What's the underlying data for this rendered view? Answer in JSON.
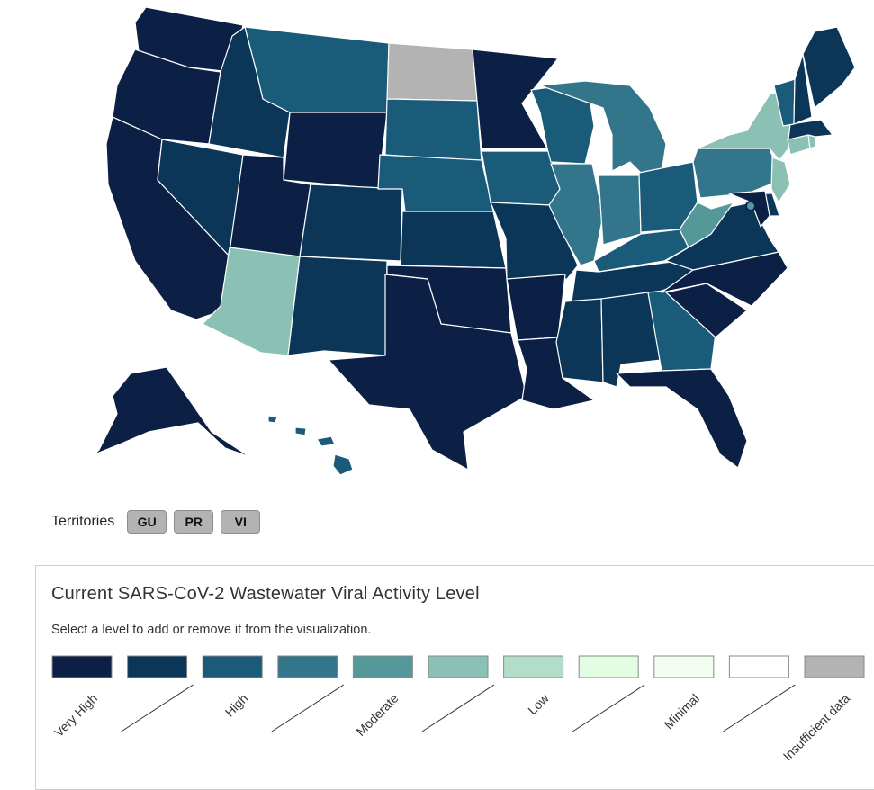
{
  "territories": {
    "label": "Territories",
    "buttons": [
      {
        "code": "GU",
        "level": "insufficient"
      },
      {
        "code": "PR",
        "level": "insufficient"
      },
      {
        "code": "VI",
        "level": "insufficient"
      }
    ]
  },
  "legend": {
    "title": "Current SARS-CoV-2 Wastewater Viral Activity Level",
    "subtitle": "Select a level to add or remove it from the visualization.",
    "swatches": [
      {
        "key": "very_high",
        "color": "#0c1f45"
      },
      {
        "key": "very_high_high",
        "color": "#0b3658"
      },
      {
        "key": "high",
        "color": "#1a5b79"
      },
      {
        "key": "high_moderate",
        "color": "#33758a"
      },
      {
        "key": "moderate",
        "color": "#55989a"
      },
      {
        "key": "moderate_low",
        "color": "#8bc0b4"
      },
      {
        "key": "low",
        "color": "#b4ddc9"
      },
      {
        "key": "low_minimal",
        "color": "#e3fde3"
      },
      {
        "key": "minimal",
        "color": "#f2fff0"
      },
      {
        "key": "minimal_none",
        "color": "#ffffff"
      },
      {
        "key": "insufficient",
        "color": "#b3b3b3"
      }
    ],
    "labels": [
      "Very High",
      "High",
      "Moderate",
      "Low",
      "Minimal",
      "Insufficient data"
    ]
  },
  "map": {
    "marker": "dc-marker",
    "states": {
      "WA": "very_high",
      "OR": "very_high",
      "CA": "very_high",
      "NV": "very_high_high",
      "ID": "very_high_high",
      "MT": "high",
      "WY": "very_high",
      "UT": "very_high",
      "AZ": "moderate_low",
      "CO": "very_high_high",
      "NM": "very_high_high",
      "ND": "insufficient",
      "SD": "high",
      "NE": "high",
      "KS": "very_high_high",
      "OK": "very_high",
      "TX": "very_high",
      "MN": "very_high",
      "IA": "high",
      "MO": "very_high_high",
      "AR": "very_high",
      "LA": "very_high",
      "WI": "high",
      "IL": "high_moderate",
      "MI": "high_moderate",
      "IN": "high_moderate",
      "OH": "high",
      "KY": "high",
      "TN": "very_high_high",
      "MS": "very_high_high",
      "AL": "very_high_high",
      "GA": "high",
      "FL": "very_high",
      "SC": "very_high",
      "NC": "very_high",
      "VA": "very_high_high",
      "WV": "moderate",
      "PA": "high_moderate",
      "NY": "moderate_low",
      "VT": "high",
      "NH": "very_high_high",
      "ME": "very_high_high",
      "MA": "very_high_high",
      "CT": "moderate_low",
      "RI": "moderate_low",
      "NJ": "moderate_low",
      "DE": "very_high_high",
      "MD": "very_high",
      "AK": "very_high",
      "HI": "high"
    }
  }
}
